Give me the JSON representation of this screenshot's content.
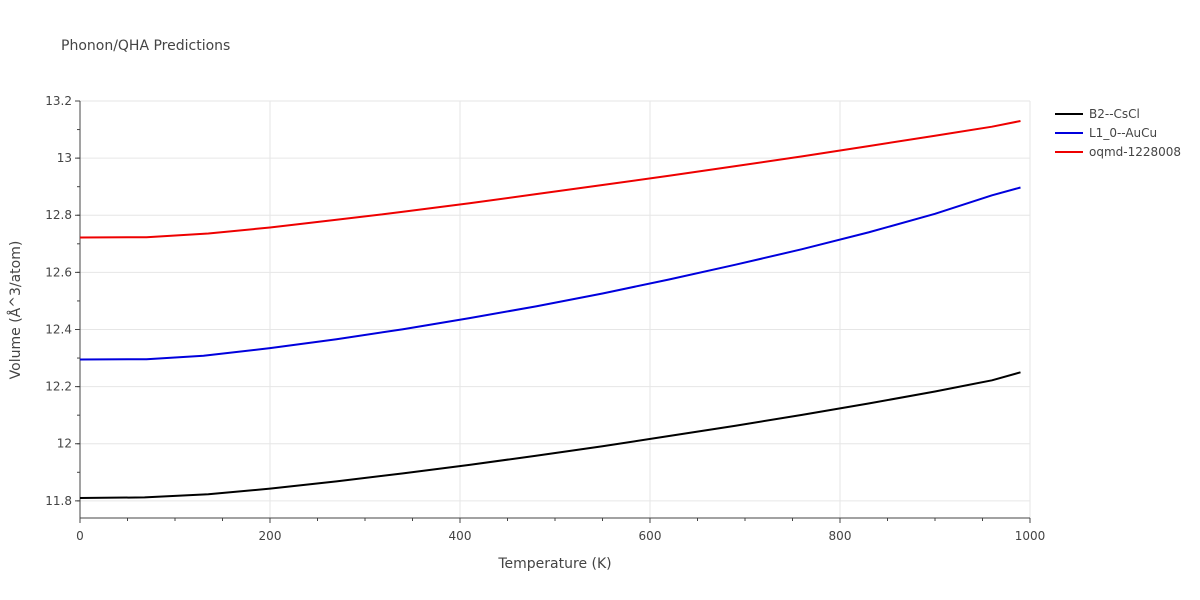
{
  "chart_data": {
    "type": "line",
    "title": "Phonon/QHA Predictions",
    "xlabel": "Temperature (K)",
    "ylabel": "Volume (Å^3/atom)",
    "xlim": [
      0,
      1000
    ],
    "ylim": [
      11.74,
      13.2
    ],
    "x_ticks": [
      0,
      200,
      400,
      600,
      800,
      1000
    ],
    "x_tick_labels": [
      "0",
      "200",
      "400",
      "600",
      "800",
      "1000"
    ],
    "y_ticks": [
      11.8,
      12.0,
      12.2,
      12.4,
      12.6,
      12.8,
      13.0,
      13.2
    ],
    "y_tick_labels": [
      "11.8",
      "12",
      "12.2",
      "12.4",
      "12.6",
      "12.8",
      "13",
      "13.2"
    ],
    "grid": true,
    "legend_position": "right",
    "series": [
      {
        "name": "B2--CsCl",
        "color": "#000000",
        "x": [
          0,
          68,
          135,
          200,
          270,
          340,
          410,
          480,
          550,
          620,
          690,
          760,
          830,
          900,
          960,
          990
        ],
        "y": [
          11.81,
          11.812,
          11.823,
          11.843,
          11.868,
          11.896,
          11.926,
          11.958,
          11.991,
          12.027,
          12.063,
          12.101,
          12.141,
          12.183,
          12.222,
          12.25
        ]
      },
      {
        "name": "L1_0--AuCu",
        "color": "#0000dd",
        "x": [
          0,
          70,
          130,
          200,
          270,
          340,
          410,
          480,
          550,
          620,
          690,
          760,
          830,
          900,
          960,
          990
        ],
        "y": [
          12.295,
          12.296,
          12.308,
          12.335,
          12.366,
          12.401,
          12.44,
          12.481,
          12.526,
          12.575,
          12.627,
          12.681,
          12.74,
          12.805,
          12.87,
          12.897
        ]
      },
      {
        "name": "oqmd-1228008",
        "color": "#ee0000",
        "x": [
          0,
          70,
          135,
          200,
          270,
          340,
          410,
          480,
          550,
          620,
          690,
          760,
          830,
          900,
          960,
          990
        ],
        "y": [
          12.722,
          12.723,
          12.736,
          12.757,
          12.784,
          12.812,
          12.842,
          12.874,
          12.906,
          12.938,
          12.972,
          13.006,
          13.042,
          13.078,
          13.11,
          13.13
        ]
      }
    ]
  }
}
